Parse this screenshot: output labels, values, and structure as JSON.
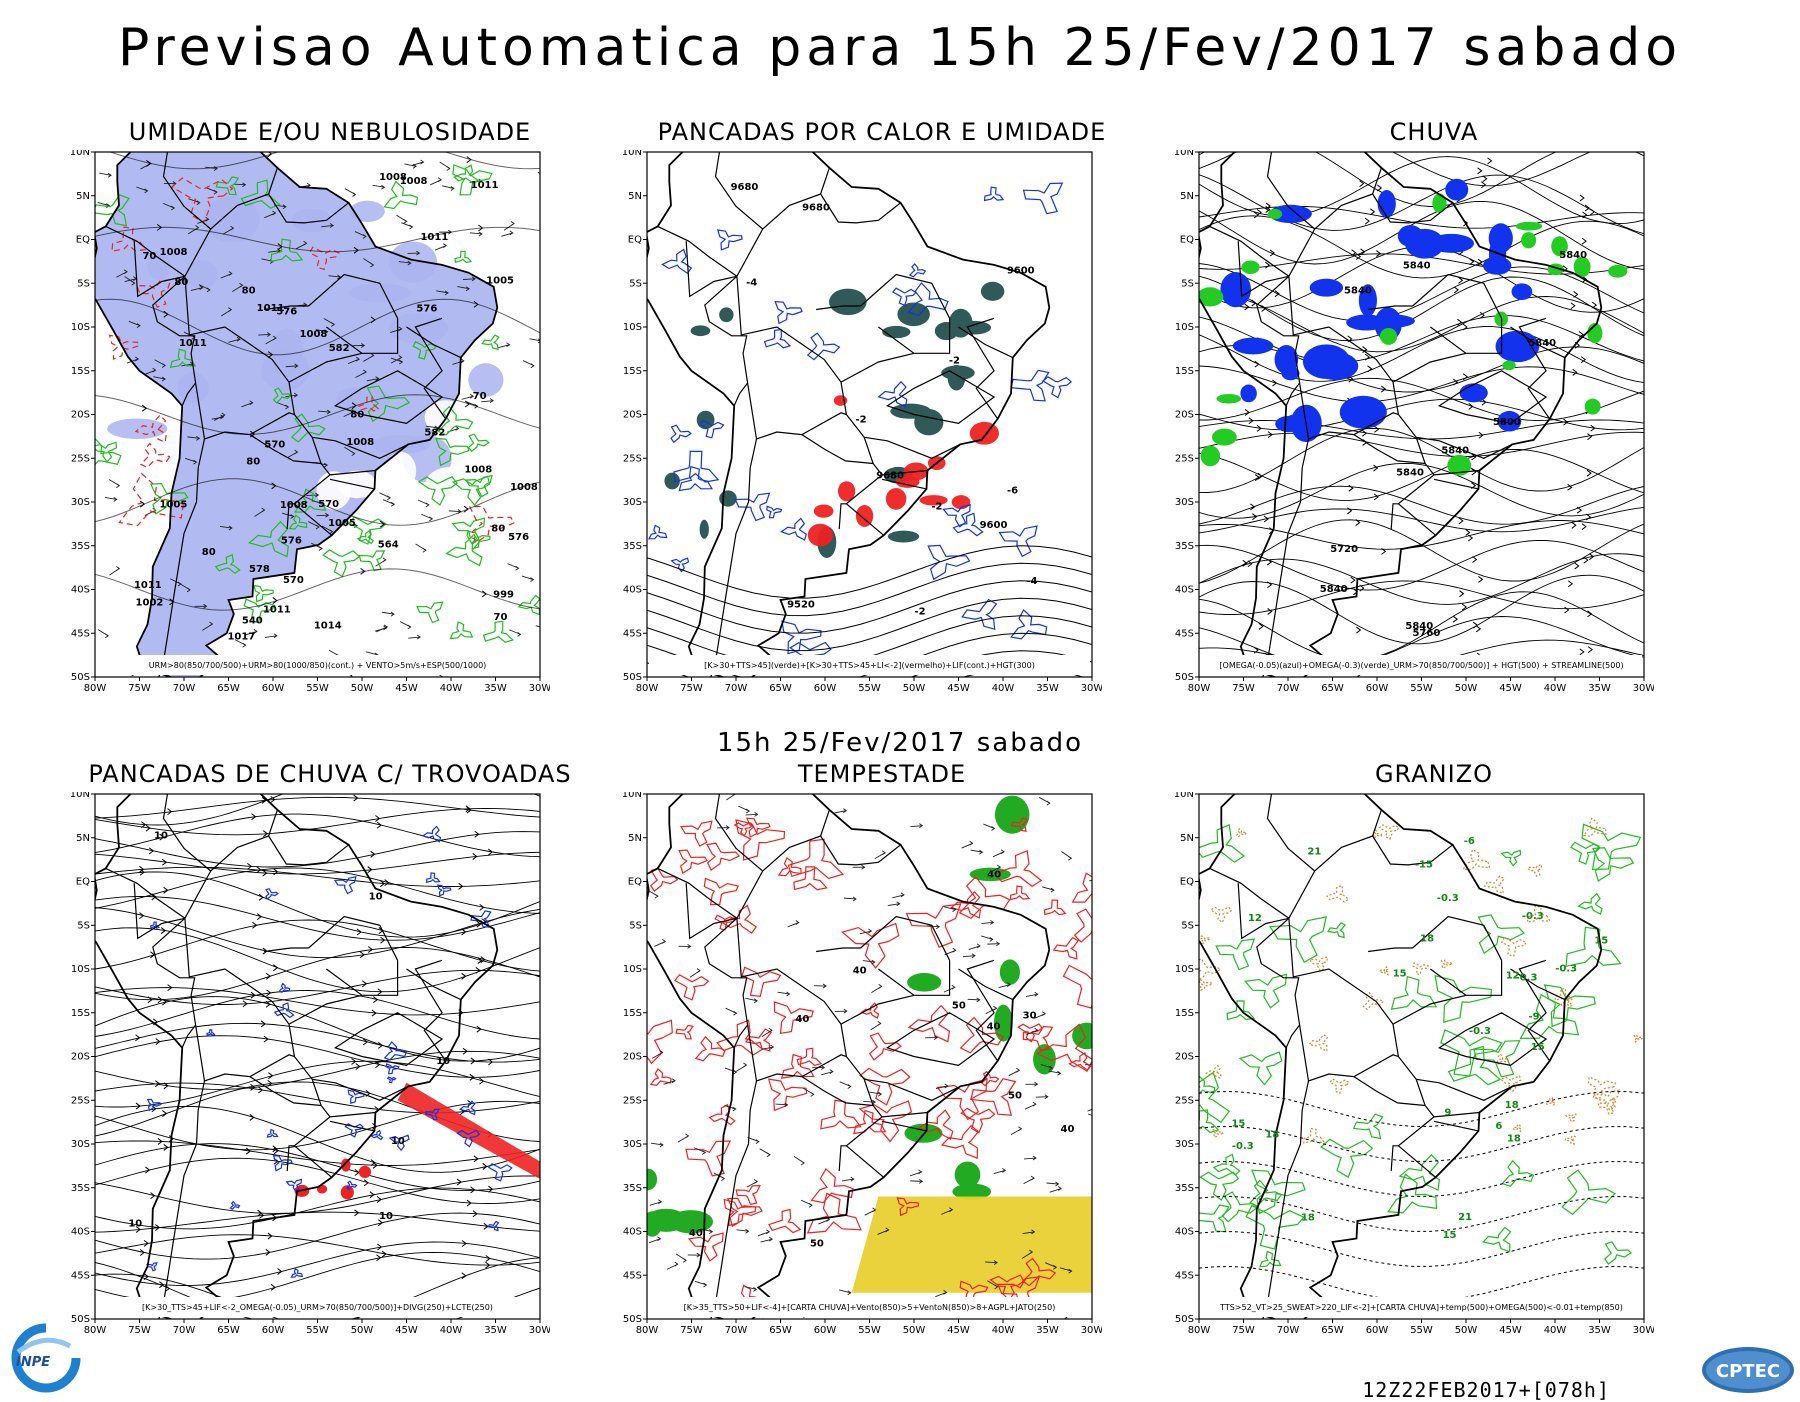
{
  "header": {
    "title": "Previsao Automatica  para 15h 25/Fev/2017 sabado"
  },
  "middle": {
    "title": "15h 25/Fev/2017 sabado"
  },
  "footer": {
    "run_code": "12Z22FEB2017+[078h]",
    "inpe_logo_text": "INPE",
    "cptec_logo_text": "CPTEC"
  },
  "colors": {
    "humidity_shade": "#aab4f0",
    "green_contour": "#22bb22",
    "red_contour": "#ee2222",
    "blue_contour": "#1133ee",
    "dark_teal": "#2f5a58",
    "yellow": "#e8d030",
    "orange": "#e08020"
  },
  "axes": {
    "lon_labels": [
      "80W",
      "75W",
      "70W",
      "65W",
      "60W",
      "55W",
      "50W",
      "45W",
      "40W",
      "35W",
      "30W"
    ],
    "lat_labels": [
      "10N",
      "5N",
      "EQ",
      "5S",
      "10S",
      "15S",
      "20S",
      "25S",
      "30S",
      "35S",
      "40S",
      "45S",
      "50S"
    ]
  },
  "panels": [
    {
      "id": "humidity",
      "title": "UMIDADE E/OU NEBULOSIDADE",
      "legend": "URM>80(850/700/500)+URM>80(1000/850)(cont.) + VENTO>5m/s+ESP(500/1000)",
      "labels": [
        "1008",
        "1008",
        "1011",
        "1011",
        "1008",
        "1005",
        "1005",
        "1002",
        "999",
        "1008",
        "1008",
        "1011",
        "1011",
        "1005",
        "1008",
        "1008",
        "1011",
        "1014",
        "1017",
        "1011",
        "1008",
        "80",
        "80",
        "80",
        "80",
        "80",
        "70",
        "70",
        "70",
        "80",
        "576",
        "576",
        "576",
        "582",
        "582",
        "578",
        "576",
        "570",
        "564",
        "570",
        "570",
        "540"
      ]
    },
    {
      "id": "convective",
      "title": "PANCADAS POR CALOR E UMIDADE",
      "legend": "[K>30+TTS>45](verde)+[K>30+TTS>45+LI<-2](vermelho)+LIF(cont.)+HGT(300)",
      "labels": [
        "9680",
        "9680",
        "9680",
        "9600",
        "9600",
        "9520",
        "-2",
        "-2",
        "-2",
        "-2",
        "-4",
        "-4",
        "-6"
      ]
    },
    {
      "id": "rain",
      "title": "CHUVA",
      "legend": "[OMEGA(-0.05)(azul)+OMEGA(-0.3)(verde)_URM>70(850/700/500)] + HGT(500) + STREAMLINE(500)",
      "labels": [
        "5840",
        "5840",
        "5840",
        "5840",
        "5840",
        "5840",
        "5800",
        "5840",
        "5720",
        "5840",
        "5760"
      ]
    },
    {
      "id": "thunderstorms",
      "title": "PANCADAS DE CHUVA C/ TROVOADAS",
      "legend": "[K>30_TTS>45+LIF<-2_OMEGA(-0.05)_URM>70(850/700/500)]+DIVG(250)+LCTE(250)",
      "labels": [
        "10",
        "10",
        "10",
        "10",
        "10",
        "10"
      ]
    },
    {
      "id": "storm",
      "title": "TEMPESTADE",
      "legend": "[K>35_TTS>50+LIF<-4]+[CARTA CHUVA]+Vento(850)>5+VentoN(850)>8+AGPL+JATO(250)",
      "labels": [
        "40",
        "40",
        "50",
        "50",
        "40",
        "40",
        "50",
        "40",
        "40",
        "30"
      ]
    },
    {
      "id": "hail",
      "title": "GRANIZO",
      "legend": "TTS>52_VT>25_SWEAT>220_LIF<-2]+[CARTA CHUVA]+temp(500)+OMEGA(500)<-0.01+temp(850)",
      "labels": [
        "15",
        "18",
        "18",
        "15",
        "18",
        "15",
        "21",
        "18",
        "15",
        "18",
        "15",
        "21",
        "12",
        "9",
        "6",
        "-6",
        "-9",
        "12",
        "-15",
        "-0.3",
        "-0.3",
        "-0.3",
        "-0.3",
        "-0.3",
        "-0.3"
      ]
    }
  ]
}
